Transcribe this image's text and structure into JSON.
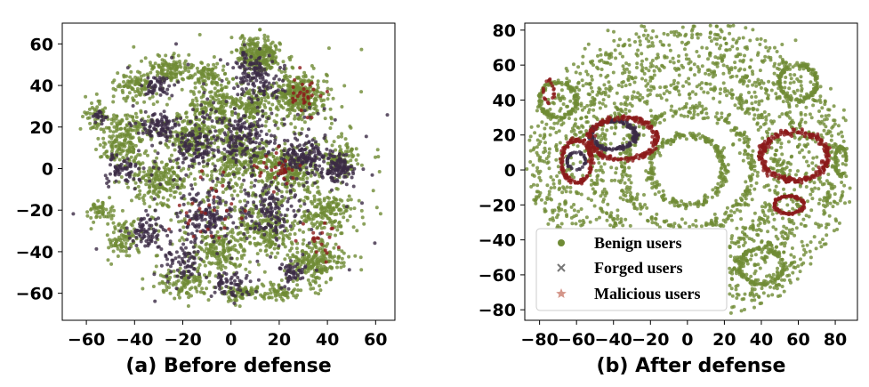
{
  "colors": {
    "benign": "#6f8b35",
    "forged": "#3b2a45",
    "malicious": "#8b1a1a",
    "legend_forged_marker": "#777777",
    "legend_malicious_marker": "#d4968a"
  },
  "chart_data": [
    {
      "type": "scatter",
      "title": "",
      "caption": "(a) Before defense",
      "xlim": [
        -70,
        68
      ],
      "ylim": [
        -73,
        70
      ],
      "xticks": [
        -60,
        -40,
        -20,
        0,
        20,
        40,
        60
      ],
      "yticks": [
        -60,
        -40,
        -20,
        0,
        20,
        40,
        60
      ],
      "xtick_labels": [
        "−60",
        "−40",
        "−20",
        "0",
        "20",
        "40",
        "60"
      ],
      "ytick_labels": [
        "−60",
        "−40",
        "−20",
        "0",
        "20",
        "40",
        "60"
      ],
      "grid": false,
      "series": [
        {
          "key": "benign",
          "marker": "circle",
          "clusters": [
            [
              12,
              55,
              8,
              8,
              260
            ],
            [
              28,
              35,
              10,
              9,
              300
            ],
            [
              -5,
              30,
              12,
              8,
              160
            ],
            [
              -25,
              48,
              8,
              6,
              120
            ],
            [
              -40,
              40,
              7,
              7,
              90
            ],
            [
              -55,
              25,
              5,
              6,
              50
            ],
            [
              -45,
              10,
              8,
              8,
              120
            ],
            [
              -30,
              -5,
              10,
              10,
              160
            ],
            [
              -15,
              15,
              8,
              8,
              140
            ],
            [
              5,
              5,
              10,
              10,
              180
            ],
            [
              25,
              0,
              10,
              10,
              180
            ],
            [
              45,
              5,
              6,
              8,
              90
            ],
            [
              40,
              -20,
              9,
              9,
              160
            ],
            [
              35,
              -45,
              10,
              10,
              220
            ],
            [
              15,
              -30,
              10,
              10,
              170
            ],
            [
              -5,
              -40,
              10,
              10,
              160
            ],
            [
              -20,
              -55,
              9,
              6,
              110
            ],
            [
              -45,
              -35,
              7,
              8,
              90
            ],
            [
              -55,
              -20,
              5,
              5,
              50
            ],
            [
              5,
              -60,
              7,
              4,
              70
            ],
            [
              20,
              -60,
              8,
              4,
              60
            ],
            [
              -10,
              45,
              6,
              6,
              80
            ],
            [
              -40,
              20,
              8,
              6,
              80
            ],
            [
              10,
              30,
              7,
              7,
              100
            ],
            [
              0,
              0,
              45,
              45,
              600
            ]
          ]
        },
        {
          "key": "forged",
          "marker": "circle",
          "clusters": [
            [
              10,
              45,
              8,
              10,
              130
            ],
            [
              -30,
              20,
              8,
              6,
              90
            ],
            [
              -15,
              10,
              8,
              8,
              90
            ],
            [
              30,
              5,
              10,
              8,
              150
            ],
            [
              45,
              0,
              5,
              6,
              100
            ],
            [
              15,
              -20,
              10,
              10,
              110
            ],
            [
              -10,
              -25,
              9,
              9,
              100
            ],
            [
              -35,
              -30,
              7,
              8,
              70
            ],
            [
              -20,
              -45,
              8,
              8,
              70
            ],
            [
              0,
              -55,
              8,
              6,
              60
            ],
            [
              25,
              -50,
              6,
              6,
              50
            ],
            [
              -45,
              0,
              6,
              6,
              60
            ],
            [
              -30,
              40,
              6,
              5,
              50
            ],
            [
              5,
              15,
              10,
              10,
              110
            ],
            [
              -55,
              25,
              3,
              3,
              20
            ],
            [
              0,
              0,
              42,
              42,
              300
            ]
          ]
        },
        {
          "key": "malicious",
          "marker": "circle",
          "clusters": [
            [
              30,
              35,
              8,
              8,
              30
            ],
            [
              20,
              0,
              10,
              10,
              30
            ],
            [
              -10,
              -20,
              15,
              15,
              30
            ],
            [
              38,
              -35,
              8,
              8,
              20
            ]
          ]
        }
      ]
    },
    {
      "type": "scatter",
      "title": "",
      "caption": "(b) After defense",
      "xlim": [
        -88,
        92
      ],
      "ylim": [
        -86,
        84
      ],
      "xticks": [
        -80,
        -60,
        -40,
        -20,
        0,
        20,
        40,
        60,
        80
      ],
      "yticks": [
        -80,
        -60,
        -40,
        -20,
        0,
        20,
        40,
        60,
        80
      ],
      "xtick_labels": [
        "−80",
        "−60",
        "−40",
        "−20",
        "0",
        "20",
        "40",
        "60",
        "80"
      ],
      "ytick_labels": [
        "−80",
        "−60",
        "−40",
        "−20",
        "0",
        "20",
        "40",
        "60",
        "80"
      ],
      "grid": false,
      "legend": {
        "position": "lower-left",
        "entries": [
          {
            "key": "benign",
            "label": "Benign users",
            "marker": "circle"
          },
          {
            "key": "forged",
            "label": "Forged users",
            "marker": "x"
          },
          {
            "key": "malicious",
            "label": "Malicious users",
            "marker": "star"
          }
        ]
      },
      "series": [
        {
          "key": "benign",
          "marker": "circle",
          "rings": [
            [
              0,
              0,
              80,
              78,
              900
            ],
            [
              0,
              0,
              65,
              62,
              700
            ],
            [
              0,
              0,
              50,
              48,
              550
            ],
            [
              0,
              0,
              35,
              34,
              400
            ],
            [
              0,
              0,
              20,
              20,
              250
            ],
            [
              -70,
              40,
              10,
              10,
              140
            ],
            [
              60,
              50,
              10,
              10,
              140
            ],
            [
              -50,
              -50,
              12,
              8,
              150
            ],
            [
              40,
              -55,
              12,
              10,
              150
            ],
            [
              83,
              5,
              3,
              8,
              60
            ]
          ]
        },
        {
          "key": "forged",
          "marker": "circle",
          "rings": [
            [
              -40,
              20,
              12,
              8,
              160
            ],
            [
              -60,
              5,
              5,
              5,
              40
            ]
          ]
        },
        {
          "key": "malicious",
          "marker": "circle",
          "rings": [
            [
              -35,
              18,
              18,
              12,
              220
            ],
            [
              -60,
              5,
              8,
              12,
              140
            ],
            [
              58,
              8,
              18,
              14,
              280
            ],
            [
              55,
              -20,
              8,
              5,
              100
            ],
            [
              -75,
              45,
              3,
              6,
              20
            ]
          ]
        }
      ]
    }
  ]
}
